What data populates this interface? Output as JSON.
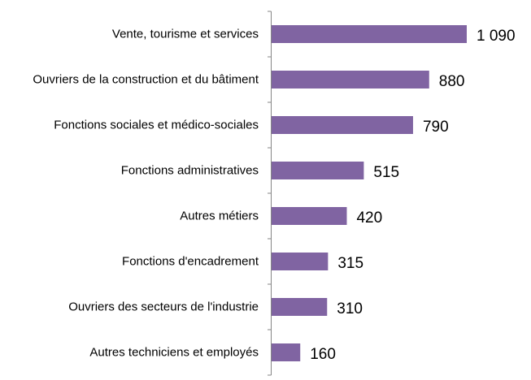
{
  "chart_data": {
    "type": "bar",
    "orientation": "horizontal",
    "categories": [
      "Vente, tourisme et services",
      "Ouvriers de la construction et du bâtiment",
      "Fonctions sociales et médico-sociales",
      "Fonctions administratives",
      "Autres métiers",
      "Fonctions d'encadrement",
      "Ouvriers des secteurs de l'industrie",
      "Autres techniciens et employés"
    ],
    "values": [
      1090,
      880,
      790,
      515,
      420,
      315,
      310,
      160
    ],
    "value_labels": [
      "1 090",
      "880",
      "790",
      "515",
      "420",
      "315",
      "310",
      "160"
    ],
    "color": "#8064a2"
  }
}
